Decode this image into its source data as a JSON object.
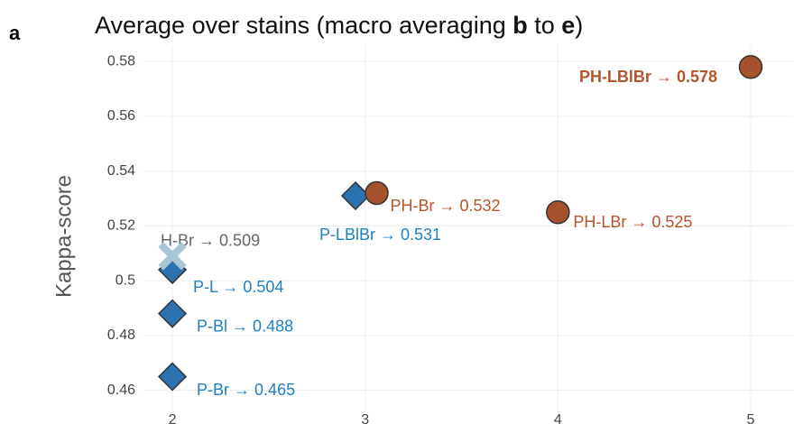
{
  "chart_data": {
    "type": "scatter",
    "panel": "a",
    "title": [
      "Average over stains (macro averaging ",
      "b",
      " to ",
      "e",
      ")"
    ],
    "y_label": "Kappa-score",
    "xlim": [
      1.85,
      5.22
    ],
    "xticks": [
      2,
      3,
      4,
      5
    ],
    "ylim": [
      0.451,
      0.586
    ],
    "yticks": [
      0.46,
      0.48,
      0.5,
      0.52,
      0.54,
      0.56,
      0.58
    ],
    "grid": true,
    "series": [
      {
        "marker": "diamond",
        "color": "#2a72b0",
        "label_color": "#1f82c0",
        "x": [
          2,
          2,
          2,
          2.95
        ],
        "values": [
          0.504,
          0.488,
          0.465,
          0.531
        ],
        "value_labels": [
          "P-L → 0.504",
          "P-Bl → 0.488",
          "P-Br → 0.465",
          "P-LBlBr → 0.531"
        ]
      },
      {
        "marker": "circle",
        "color": "#a5522c",
        "label_color": "#b5552c",
        "x": [
          3.06,
          4,
          5
        ],
        "values": [
          0.532,
          0.525,
          0.578
        ],
        "value_labels": [
          "PH-Br → 0.532",
          "PH-LBr → 0.525",
          "PH-LBlBr → 0.578"
        ]
      },
      {
        "marker": "cross",
        "color": "#a9c6d6",
        "label_color": "#666666",
        "x": [
          2
        ],
        "values": [
          0.509
        ],
        "value_labels": [
          "H-Br → 0.509"
        ]
      }
    ]
  }
}
